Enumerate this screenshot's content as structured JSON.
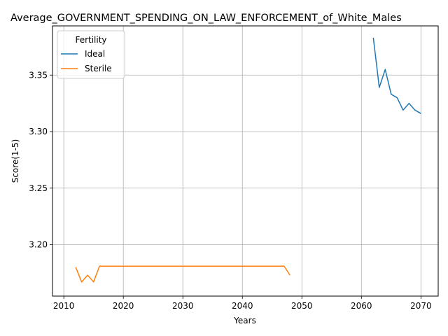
{
  "chart_data": {
    "type": "line",
    "title": "Average_GOVERNMENT_SPENDING_ON_LAW_ENFORCEMENT_of_White_Males",
    "xlabel": "Years",
    "ylabel": "Score(1-5)",
    "xlim": [
      2008.1,
      2072.9
    ],
    "ylim": [
      3.1545,
      3.3935
    ],
    "xticks": [
      "2010",
      "2020",
      "2030",
      "2040",
      "2050",
      "2060",
      "2070"
    ],
    "yticks": [
      "3.20",
      "3.25",
      "3.30",
      "3.35"
    ],
    "grid": true,
    "legend": {
      "title": "Fertility",
      "placement": "upper left"
    },
    "series": [
      {
        "name": "Ideal",
        "color": "#1f77b4",
        "x": [
          2062,
          2063,
          2064,
          2065,
          2066,
          2067,
          2068,
          2069,
          2070
        ],
        "y": [
          3.383,
          3.339,
          3.355,
          3.333,
          3.33,
          3.319,
          3.325,
          3.319,
          3.316
        ]
      },
      {
        "name": "Sterile",
        "color": "#ff7f0e",
        "x": [
          2012,
          2013,
          2014,
          2015,
          2016,
          2017,
          2018,
          2019,
          2020,
          2021,
          2022,
          2023,
          2024,
          2025,
          2026,
          2027,
          2028,
          2029,
          2030,
          2031,
          2032,
          2033,
          2034,
          2035,
          2036,
          2037,
          2038,
          2039,
          2040,
          2041,
          2042,
          2043,
          2044,
          2045,
          2046,
          2047,
          2048
        ],
        "y": [
          3.18,
          3.167,
          3.173,
          3.167,
          3.181,
          3.181,
          3.181,
          3.181,
          3.181,
          3.181,
          3.181,
          3.181,
          3.181,
          3.181,
          3.181,
          3.181,
          3.181,
          3.181,
          3.181,
          3.181,
          3.181,
          3.181,
          3.181,
          3.181,
          3.181,
          3.181,
          3.181,
          3.181,
          3.181,
          3.181,
          3.181,
          3.181,
          3.181,
          3.181,
          3.181,
          3.181,
          3.173
        ]
      }
    ]
  }
}
